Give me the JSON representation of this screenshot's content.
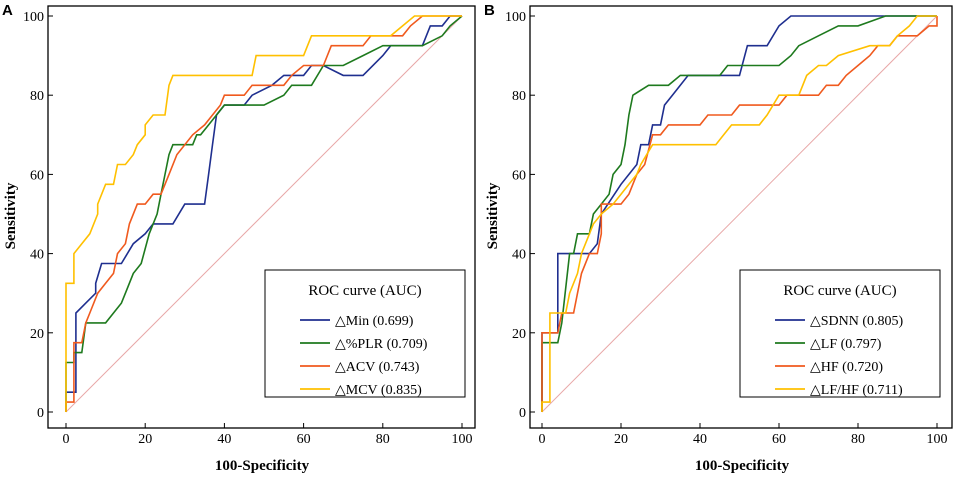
{
  "chart_data": [
    {
      "panel_label": "A",
      "type": "line",
      "xlabel": "100-Specificity",
      "ylabel": "Sensitivity",
      "xlim": [
        0,
        100
      ],
      "ylim": [
        0,
        100
      ],
      "xticks": [
        "0",
        "20",
        "40",
        "60",
        "80",
        "100"
      ],
      "yticks": [
        "0",
        "20",
        "40",
        "60",
        "80",
        "100"
      ],
      "legend_title": "ROC curve (AUC)",
      "legend_placement": "bottom-right",
      "reference_line": {
        "from": [
          0,
          0
        ],
        "to": [
          100,
          100
        ],
        "color": "#e8a8a8"
      },
      "series": [
        {
          "name": "△Min (0.699)",
          "color": "#1f2f8f",
          "points": [
            [
              0,
              0
            ],
            [
              0,
              2.5
            ],
            [
              0,
              5
            ],
            [
              2.5,
              5
            ],
            [
              2.5,
              25
            ],
            [
              5,
              27.5
            ],
            [
              7.5,
              30
            ],
            [
              7.5,
              32.5
            ],
            [
              9,
              37.5
            ],
            [
              14,
              37.5
            ],
            [
              17,
              42.5
            ],
            [
              20,
              45
            ],
            [
              22,
              47.5
            ],
            [
              27,
              47.5
            ],
            [
              30,
              52.5
            ],
            [
              35,
              52.5
            ],
            [
              36,
              60
            ],
            [
              37,
              67.5
            ],
            [
              38,
              75
            ],
            [
              40,
              77.5
            ],
            [
              45,
              77.5
            ],
            [
              47,
              80
            ],
            [
              52,
              82.5
            ],
            [
              55,
              85
            ],
            [
              60,
              85
            ],
            [
              62,
              87.5
            ],
            [
              65,
              87.5
            ],
            [
              70,
              85
            ],
            [
              75,
              85
            ],
            [
              80,
              90
            ],
            [
              82,
              92.5
            ],
            [
              90,
              92.5
            ],
            [
              92,
              97.5
            ],
            [
              95,
              97.5
            ],
            [
              97,
              100
            ],
            [
              100,
              100
            ]
          ]
        },
        {
          "name": "△%PLR (0.709)",
          "color": "#1e7a1e",
          "points": [
            [
              0,
              0
            ],
            [
              0,
              12.5
            ],
            [
              2,
              12.5
            ],
            [
              2,
              15
            ],
            [
              4,
              15
            ],
            [
              5,
              22.5
            ],
            [
              10,
              22.5
            ],
            [
              12,
              25
            ],
            [
              14,
              27.5
            ],
            [
              15,
              30
            ],
            [
              17,
              35
            ],
            [
              19,
              37.5
            ],
            [
              21,
              45
            ],
            [
              23,
              50
            ],
            [
              24,
              55
            ],
            [
              25,
              60
            ],
            [
              26,
              65
            ],
            [
              27,
              67.5
            ],
            [
              32,
              67.5
            ],
            [
              33,
              70
            ],
            [
              34,
              70
            ],
            [
              36,
              72.5
            ],
            [
              38,
              75
            ],
            [
              40,
              77.5
            ],
            [
              43,
              77.5
            ],
            [
              47,
              77.5
            ],
            [
              50,
              77.5
            ],
            [
              55,
              80
            ],
            [
              57,
              82.5
            ],
            [
              62,
              82.5
            ],
            [
              65,
              87.5
            ],
            [
              70,
              87.5
            ],
            [
              75,
              90
            ],
            [
              80,
              92.5
            ],
            [
              85,
              92.5
            ],
            [
              90,
              92.5
            ],
            [
              95,
              95
            ],
            [
              97,
              97.5
            ],
            [
              100,
              100
            ]
          ]
        },
        {
          "name": "△ACV (0.743)",
          "color": "#f05a1e",
          "points": [
            [
              0,
              0
            ],
            [
              0,
              2.5
            ],
            [
              2,
              2.5
            ],
            [
              2,
              17.5
            ],
            [
              4,
              17.5
            ],
            [
              5,
              22.5
            ],
            [
              6,
              25
            ],
            [
              8,
              30
            ],
            [
              10,
              32.5
            ],
            [
              12,
              35
            ],
            [
              13,
              40
            ],
            [
              15,
              42.5
            ],
            [
              16,
              47.5
            ],
            [
              18,
              52.5
            ],
            [
              20,
              52.5
            ],
            [
              22,
              55
            ],
            [
              24,
              55
            ],
            [
              26,
              60
            ],
            [
              28,
              65
            ],
            [
              30,
              67.5
            ],
            [
              32,
              70
            ],
            [
              35,
              72.5
            ],
            [
              37,
              75
            ],
            [
              39,
              77.5
            ],
            [
              40,
              80
            ],
            [
              45,
              80
            ],
            [
              47,
              82.5
            ],
            [
              55,
              82.5
            ],
            [
              57,
              85
            ],
            [
              60,
              87.5
            ],
            [
              62,
              87.5
            ],
            [
              65,
              87.5
            ],
            [
              67,
              92.5
            ],
            [
              75,
              92.5
            ],
            [
              77,
              95
            ],
            [
              85,
              95
            ],
            [
              87,
              97.5
            ],
            [
              90,
              100
            ],
            [
              100,
              100
            ]
          ]
        },
        {
          "name": "△MCV (0.835)",
          "color": "#ffc000",
          "points": [
            [
              0,
              0
            ],
            [
              0,
              32.5
            ],
            [
              2,
              32.5
            ],
            [
              2,
              40
            ],
            [
              4,
              42.5
            ],
            [
              6,
              45
            ],
            [
              8,
              50
            ],
            [
              8,
              52.5
            ],
            [
              10,
              57.5
            ],
            [
              12,
              57.5
            ],
            [
              13,
              62.5
            ],
            [
              15,
              62.5
            ],
            [
              17,
              65
            ],
            [
              18,
              67.5
            ],
            [
              20,
              70
            ],
            [
              20,
              72.5
            ],
            [
              22,
              75
            ],
            [
              25,
              75
            ],
            [
              26,
              82.5
            ],
            [
              27,
              85
            ],
            [
              35,
              85
            ],
            [
              47,
              85
            ],
            [
              48,
              90
            ],
            [
              60,
              90
            ],
            [
              62,
              95
            ],
            [
              82,
              95
            ],
            [
              85,
              97.5
            ],
            [
              88,
              100
            ],
            [
              100,
              100
            ]
          ]
        }
      ]
    },
    {
      "panel_label": "B",
      "type": "line",
      "xlabel": "100-Specificity",
      "ylabel": "Sensitivity",
      "xlim": [
        0,
        100
      ],
      "ylim": [
        0,
        100
      ],
      "xticks": [
        "0",
        "20",
        "40",
        "60",
        "80",
        "100"
      ],
      "yticks": [
        "0",
        "20",
        "40",
        "60",
        "80",
        "100"
      ],
      "legend_title": "ROC curve (AUC)",
      "legend_placement": "bottom-right",
      "reference_line": {
        "from": [
          0,
          0
        ],
        "to": [
          100,
          100
        ],
        "color": "#e8a8a8"
      },
      "series": [
        {
          "name": "△SDNN (0.805)",
          "color": "#1f2f8f",
          "points": [
            [
              0,
              0
            ],
            [
              0,
              20
            ],
            [
              4,
              20
            ],
            [
              4,
              40
            ],
            [
              12,
              40
            ],
            [
              14,
              42.5
            ],
            [
              15,
              50
            ],
            [
              20,
              57.5
            ],
            [
              22,
              60
            ],
            [
              24,
              62.5
            ],
            [
              25,
              67.5
            ],
            [
              27,
              67.5
            ],
            [
              28,
              72.5
            ],
            [
              30,
              72.5
            ],
            [
              31,
              77.5
            ],
            [
              33,
              80
            ],
            [
              35,
              82.5
            ],
            [
              37,
              85
            ],
            [
              50,
              85
            ],
            [
              52,
              92.5
            ],
            [
              57,
              92.5
            ],
            [
              60,
              97.5
            ],
            [
              63,
              100
            ],
            [
              100,
              100
            ]
          ]
        },
        {
          "name": "△LF (0.797)",
          "color": "#1e7a1e",
          "points": [
            [
              0,
              0
            ],
            [
              0,
              17.5
            ],
            [
              4,
              17.5
            ],
            [
              5,
              22.5
            ],
            [
              7,
              40
            ],
            [
              8,
              40
            ],
            [
              9,
              45
            ],
            [
              12,
              45
            ],
            [
              13,
              50
            ],
            [
              15,
              52.5
            ],
            [
              17,
              55
            ],
            [
              18,
              60
            ],
            [
              20,
              62.5
            ],
            [
              21,
              67.5
            ],
            [
              22,
              75
            ],
            [
              23,
              80
            ],
            [
              27,
              82.5
            ],
            [
              32,
              82.5
            ],
            [
              35,
              85
            ],
            [
              45,
              85
            ],
            [
              47,
              87.5
            ],
            [
              60,
              87.5
            ],
            [
              63,
              90
            ],
            [
              65,
              92.5
            ],
            [
              70,
              95
            ],
            [
              75,
              97.5
            ],
            [
              80,
              97.5
            ],
            [
              87,
              100
            ],
            [
              100,
              100
            ]
          ]
        },
        {
          "name": "△HF (0.720)",
          "color": "#f05a1e",
          "points": [
            [
              0,
              0
            ],
            [
              0,
              20
            ],
            [
              4,
              20
            ],
            [
              5,
              25
            ],
            [
              8,
              25
            ],
            [
              9,
              30
            ],
            [
              10,
              35
            ],
            [
              12,
              40
            ],
            [
              14,
              40
            ],
            [
              15,
              45
            ],
            [
              15,
              52.5
            ],
            [
              20,
              52.5
            ],
            [
              22,
              55
            ],
            [
              24,
              60
            ],
            [
              26,
              62.5
            ],
            [
              28,
              70
            ],
            [
              30,
              70
            ],
            [
              32,
              72.5
            ],
            [
              40,
              72.5
            ],
            [
              42,
              75
            ],
            [
              48,
              75
            ],
            [
              50,
              77.5
            ],
            [
              60,
              77.5
            ],
            [
              62,
              80
            ],
            [
              70,
              80
            ],
            [
              72,
              82.5
            ],
            [
              75,
              82.5
            ],
            [
              77,
              85
            ],
            [
              80,
              87.5
            ],
            [
              83,
              90
            ],
            [
              85,
              92.5
            ],
            [
              88,
              92.5
            ],
            [
              90,
              95
            ],
            [
              95,
              95
            ],
            [
              98,
              97.5
            ],
            [
              100,
              97.5
            ],
            [
              100,
              100
            ]
          ]
        },
        {
          "name": "△LF/HF (0.711)",
          "color": "#ffc000",
          "points": [
            [
              0,
              0
            ],
            [
              0,
              2.5
            ],
            [
              2,
              2.5
            ],
            [
              2,
              25
            ],
            [
              6,
              25
            ],
            [
              7,
              30
            ],
            [
              9,
              35
            ],
            [
              10,
              40
            ],
            [
              13,
              47.5
            ],
            [
              15,
              50
            ],
            [
              18,
              52.5
            ],
            [
              20,
              55
            ],
            [
              22,
              57.5
            ],
            [
              24,
              60
            ],
            [
              25,
              62.5
            ],
            [
              28,
              67.5
            ],
            [
              40,
              67.5
            ],
            [
              44,
              67.5
            ],
            [
              46,
              70
            ],
            [
              48,
              72.5
            ],
            [
              55,
              72.5
            ],
            [
              57,
              75
            ],
            [
              60,
              80
            ],
            [
              65,
              80
            ],
            [
              67,
              85
            ],
            [
              70,
              87.5
            ],
            [
              72,
              87.5
            ],
            [
              75,
              90
            ],
            [
              83,
              92.5
            ],
            [
              88,
              92.5
            ],
            [
              90,
              95
            ],
            [
              93,
              97.5
            ],
            [
              95,
              100
            ],
            [
              100,
              100
            ]
          ]
        }
      ]
    }
  ]
}
